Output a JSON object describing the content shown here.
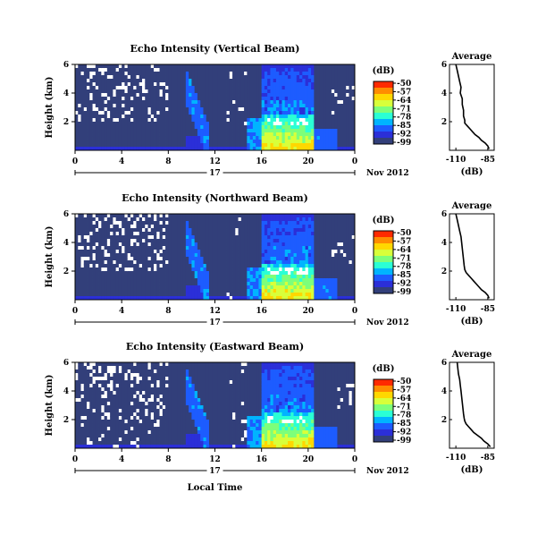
{
  "chart_data": {
    "type": "heatmap",
    "x_ticks": [
      "0",
      "4",
      "8",
      "12",
      "16",
      "20",
      "0"
    ],
    "y_ticks": [
      "6",
      "4",
      "2"
    ],
    "ylabel": "Height (km)",
    "day_label": "17",
    "date_label": "Nov 2012",
    "xlabel": "Local Time",
    "colorbar": {
      "unit": "(dB)",
      "ticks": [
        "-50",
        "-57",
        "-64",
        "-71",
        "-78",
        "-85",
        "-92",
        "-99"
      ],
      "colors": [
        "#ff2a00",
        "#ff8c00",
        "#ffd700",
        "#d8ff3a",
        "#7dff7a",
        "#2affd5",
        "#00b4ff",
        "#1d5cff",
        "#2b2fd8",
        "#323f7a"
      ]
    },
    "panels": [
      {
        "title": "Echo Intensity (Vertical Beam)",
        "profile": {
          "title": "Average",
          "xlabel": "(dB)",
          "x_ticks": [
            "-110",
            "-85"
          ],
          "y_ticks": [
            "6",
            "4",
            "2"
          ],
          "xlim": [
            -115,
            -80
          ],
          "ylim": [
            0,
            6
          ],
          "x": [
            -110,
            -109,
            -108,
            -107,
            -106,
            -106.5,
            -105,
            -105,
            -104,
            -104,
            -103,
            -103,
            -101,
            -99,
            -97,
            -95,
            -92,
            -90,
            -87,
            -85,
            -84
          ],
          "height": [
            6.0,
            5.6,
            5.2,
            4.8,
            4.4,
            4.0,
            3.6,
            3.2,
            2.8,
            2.4,
            2.1,
            1.9,
            1.7,
            1.5,
            1.3,
            1.1,
            0.9,
            0.7,
            0.5,
            0.3,
            0.1
          ]
        }
      },
      {
        "title": "Echo Intensity (Northward Beam)",
        "profile": {
          "title": "Average",
          "xlabel": "(dB)",
          "x_ticks": [
            "-110",
            "-85"
          ],
          "y_ticks": [
            "6",
            "4",
            "2"
          ],
          "xlim": [
            -115,
            -80
          ],
          "ylim": [
            0,
            6
          ],
          "x": [
            -110,
            -109,
            -108,
            -107,
            -106,
            -105.5,
            -105,
            -104.5,
            -104,
            -103.5,
            -103,
            -102,
            -100,
            -98,
            -96,
            -94,
            -92,
            -90,
            -87,
            -85,
            -84
          ],
          "height": [
            6.0,
            5.6,
            5.2,
            4.8,
            4.4,
            4.0,
            3.6,
            3.2,
            2.8,
            2.4,
            2.1,
            1.9,
            1.7,
            1.5,
            1.3,
            1.1,
            0.9,
            0.7,
            0.5,
            0.3,
            0.1
          ]
        }
      },
      {
        "title": "Echo Intensity (Eastward Beam)",
        "profile": {
          "title": "Average",
          "xlabel": "(dB)",
          "x_ticks": [
            "-110",
            "-85"
          ],
          "y_ticks": [
            "6",
            "4",
            "2"
          ],
          "xlim": [
            -115,
            -80
          ],
          "ylim": [
            0,
            6
          ],
          "x": [
            -109,
            -108.5,
            -108,
            -107,
            -106.5,
            -106,
            -105.5,
            -105,
            -104.5,
            -104,
            -103.5,
            -103,
            -102,
            -100,
            -98,
            -96,
            -93,
            -90,
            -88,
            -85,
            -83
          ],
          "height": [
            6.0,
            5.6,
            5.2,
            4.8,
            4.4,
            4.0,
            3.6,
            3.2,
            2.8,
            2.4,
            2.1,
            1.9,
            1.7,
            1.5,
            1.3,
            1.1,
            0.9,
            0.7,
            0.5,
            0.3,
            0.1
          ]
        }
      }
    ]
  }
}
